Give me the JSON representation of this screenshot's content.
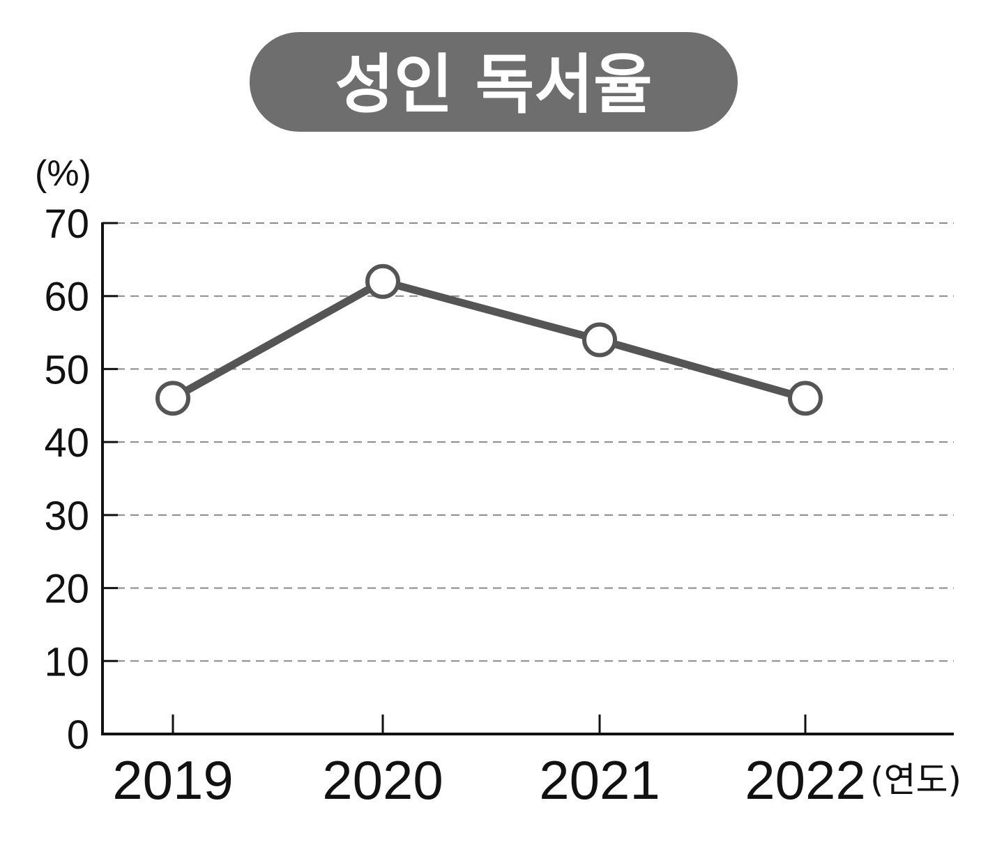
{
  "chart_data": {
    "type": "line",
    "title": "성인 독서율",
    "ylabel": "(%)",
    "xlabel": "(연도)",
    "categories": [
      "2019",
      "2020",
      "2021",
      "2022"
    ],
    "series": [
      {
        "values": [
          46,
          62,
          54,
          46
        ]
      }
    ],
    "ylim": [
      0,
      70
    ],
    "yticks": [
      0,
      10,
      20,
      30,
      40,
      50,
      60,
      70
    ],
    "grid": true,
    "colors": {
      "title_bg": "#6e6e6e",
      "line": "#555555",
      "marker_fill": "#ffffff",
      "axis": "#111111",
      "grid": "#8a8a8a"
    }
  }
}
